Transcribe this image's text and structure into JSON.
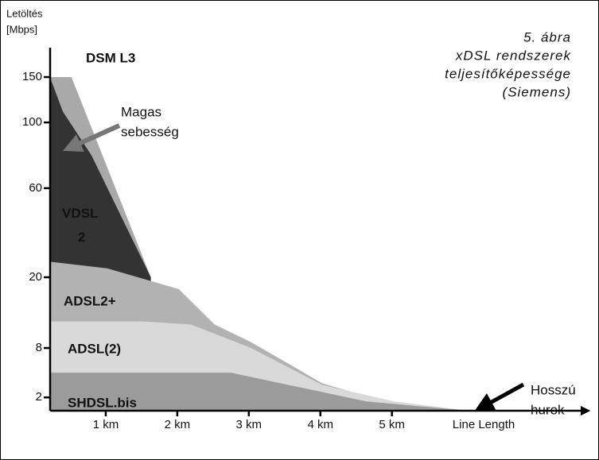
{
  "chart_data": {
    "type": "area",
    "y_label_lines": [
      "Letöltés",
      "[Mbps]"
    ],
    "x_label": "Line Length",
    "title_lines": [
      "5. ábra",
      "xDSL rendszerek",
      "teljesítőképessége",
      "(Siemens)"
    ],
    "annotations": [
      {
        "lines": [
          "Magas",
          "sebesség"
        ]
      },
      {
        "lines": [
          "Hosszú",
          "hurok"
        ]
      }
    ],
    "xlim": [
      0.2,
      7.75
    ],
    "xticks": [
      {
        "value": 1,
        "label": "1 km"
      },
      {
        "value": 2,
        "label": "2 km"
      },
      {
        "value": 3,
        "label": "3 km"
      },
      {
        "value": 4,
        "label": "4 km"
      },
      {
        "value": 5,
        "label": "5 km"
      }
    ],
    "ylim": [
      0,
      150
    ],
    "yticks": [
      2,
      8,
      20,
      60,
      100,
      150
    ],
    "series": [
      {
        "name": "DSM L3",
        "color": "#a9a9a9",
        "x": [
          0.22,
          0.52,
          1.63
        ],
        "values": [
          150,
          150,
          20
        ]
      },
      {
        "name": "VDSL 2",
        "color": "#333333",
        "x": [
          0.22,
          0.4,
          0.8,
          1.63
        ],
        "values": [
          150,
          112,
          80,
          20
        ]
      },
      {
        "name": "ADSL2+",
        "color": "#b2b2b2",
        "x": [
          0.22,
          1.02,
          2.02,
          2.52,
          3.03,
          4.03,
          5.08,
          6.08
        ],
        "values": [
          27,
          24,
          18,
          12,
          9,
          3.7,
          0.8,
          0
        ]
      },
      {
        "name": "ADSL(2)",
        "color": "#d9d9d9",
        "x": [
          0.22,
          1.52,
          2.19,
          3.03,
          4.03,
          5.03,
          6.08
        ],
        "values": [
          12.5,
          12.5,
          12,
          8,
          3.5,
          1.4,
          0
        ]
      },
      {
        "name": "SHDSL.bis",
        "color": "#9b9b9b",
        "x": [
          0.22,
          2.75,
          4.64,
          6.08
        ],
        "values": [
          5,
          5,
          1.4,
          0
        ]
      }
    ]
  }
}
